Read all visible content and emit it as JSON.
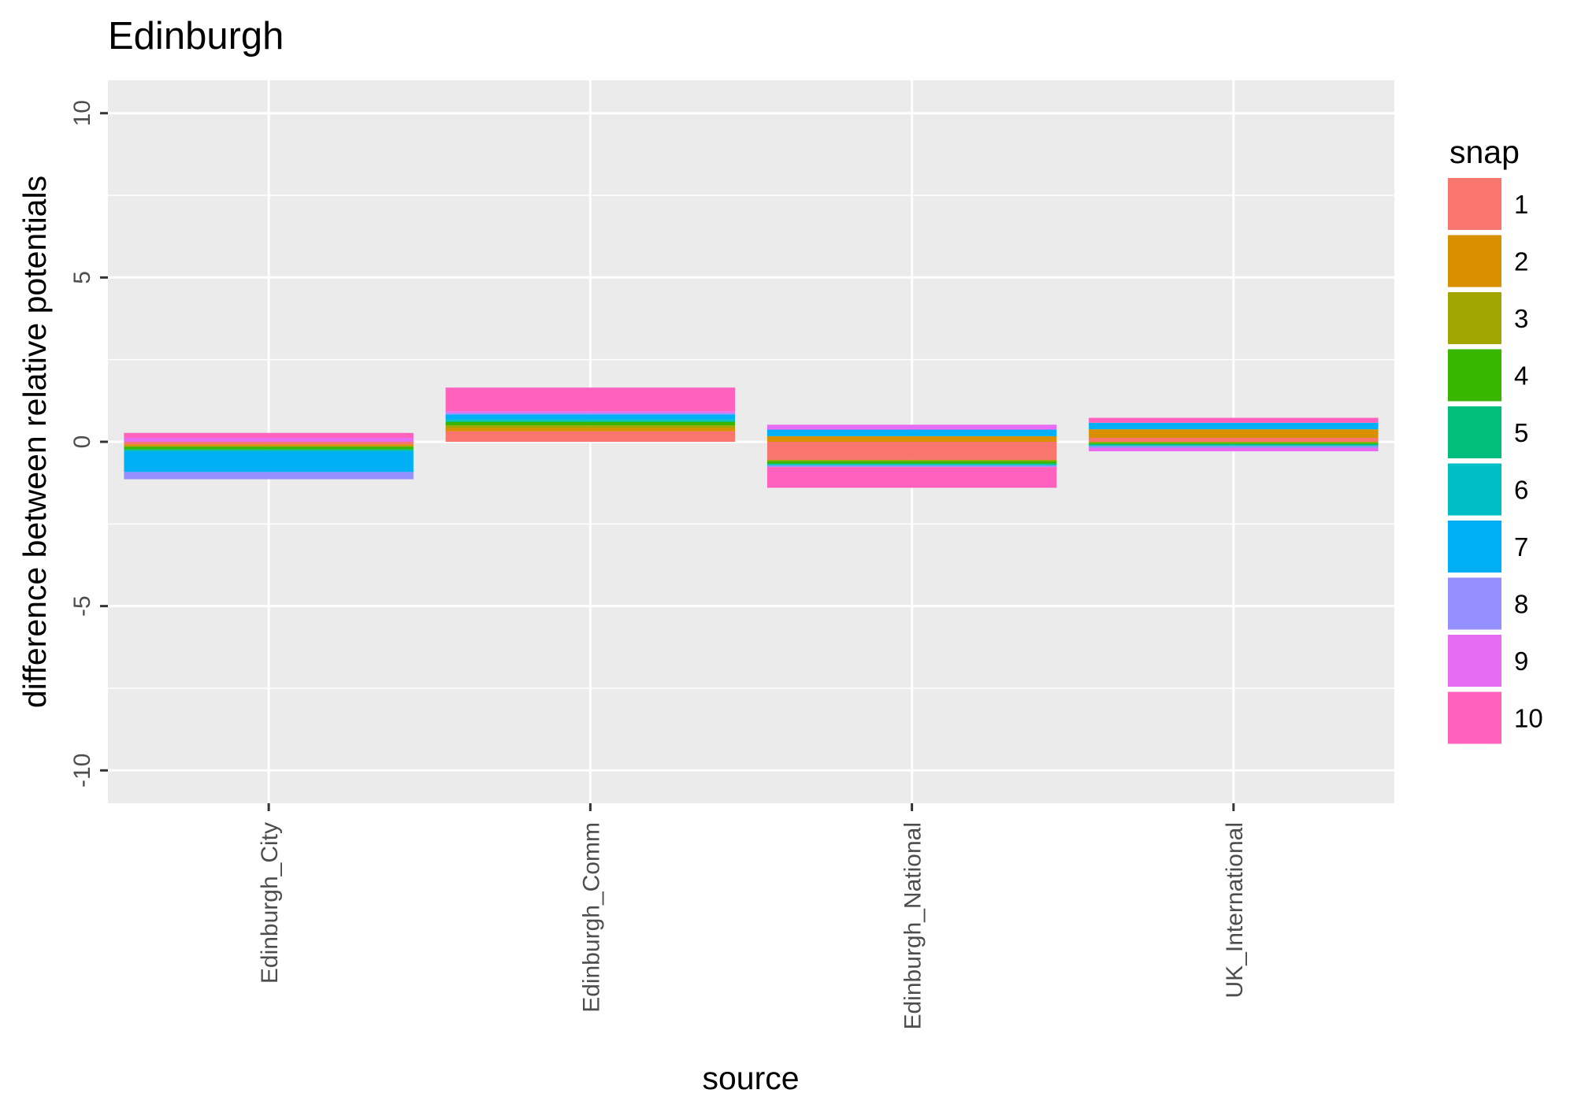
{
  "chart_data": {
    "type": "bar",
    "stacked": true,
    "title": "Edinburgh",
    "xlabel": "source",
    "ylabel": "difference between relative potentials",
    "categories": [
      "Edinburgh_City",
      "Edinburgh_Comm",
      "Edinburgh_National",
      "UK_International"
    ],
    "ylim": [
      -11,
      11
    ],
    "yticks": [
      -10,
      -5,
      0,
      5,
      10
    ],
    "grid": true,
    "legend": {
      "title": "snap",
      "position": "right",
      "entries": [
        "1",
        "2",
        "3",
        "4",
        "5",
        "6",
        "7",
        "8",
        "9",
        "10"
      ]
    },
    "colors": [
      "#F8766D",
      "#D89000",
      "#A3A500",
      "#39B600",
      "#00BF7D",
      "#00BFC4",
      "#00B0F6",
      "#9590FF",
      "#E76BF3",
      "#FF62BC"
    ],
    "panel_background": "#EBEBEB",
    "series": [
      {
        "name": "1",
        "values": [
          -0.08,
          0.32,
          -0.55,
          0.12
        ]
      },
      {
        "name": "2",
        "values": [
          -0.05,
          0.1,
          0.17,
          0.26
        ]
      },
      {
        "name": "3",
        "values": [
          -0.02,
          0.08,
          -0.04,
          -0.03
        ]
      },
      {
        "name": "4",
        "values": [
          -0.08,
          0.1,
          -0.07,
          -0.04
        ]
      },
      {
        "name": "5",
        "values": [
          -0.03,
          0.03,
          -0.03,
          -0.03
        ]
      },
      {
        "name": "6",
        "values": [
          -0.04,
          0.05,
          -0.03,
          -0.03
        ]
      },
      {
        "name": "7",
        "values": [
          -0.62,
          0.15,
          0.2,
          0.2
        ]
      },
      {
        "name": "8",
        "values": [
          -0.22,
          0.05,
          -0.05,
          -0.06
        ]
      },
      {
        "name": "9",
        "values": [
          0.12,
          0.05,
          0.15,
          -0.1
        ]
      },
      {
        "name": "10",
        "values": [
          0.15,
          0.72,
          -0.63,
          0.15
        ]
      }
    ]
  }
}
